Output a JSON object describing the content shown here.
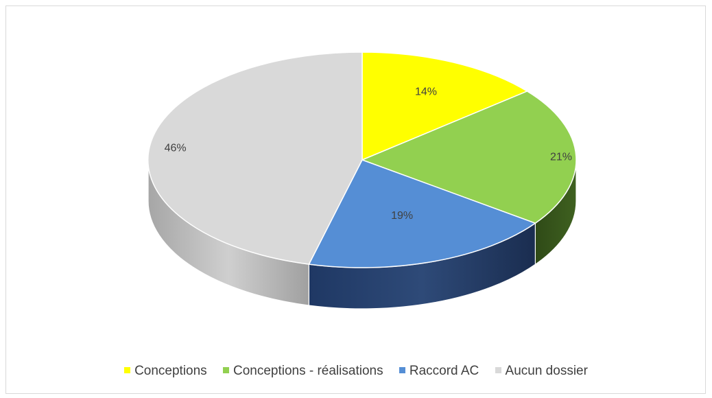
{
  "chart_data": {
    "type": "pie",
    "title": "",
    "categories": [
      "Conceptions",
      "Conceptions - réalisations",
      "Raccord AC",
      "Aucun dossier"
    ],
    "values": [
      14,
      21,
      19,
      46
    ],
    "labels": [
      "14%",
      "21%",
      "19%",
      "46%"
    ],
    "colors": [
      "#ffff00",
      "#92d050",
      "#558ed5",
      "#d9d9d9"
    ],
    "side_colors": [
      "#999900",
      "#3a5a1c",
      "#1f3864",
      "#bfbfbf"
    ],
    "legend_position": "bottom",
    "style": "3d"
  }
}
